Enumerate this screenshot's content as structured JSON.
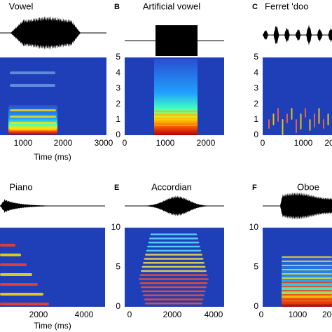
{
  "panels": [
    {
      "title": "Vowel",
      "xticks": [
        "1000",
        "2000",
        "3000"
      ],
      "xlabel": "Time (ms)"
    },
    {
      "letter": "B",
      "title": "Artificial vowel",
      "xticks": [
        "0",
        "1000",
        "2000"
      ],
      "yticks": [
        "0",
        "1",
        "2",
        "3",
        "4",
        "5"
      ]
    },
    {
      "letter": "C",
      "title": "Ferret 'doo",
      "xticks": [
        "0",
        "1000",
        "20"
      ],
      "yticks": [
        "0",
        "1",
        "2",
        "3",
        "4",
        "5"
      ]
    },
    {
      "title": "Piano",
      "xticks": [
        "2000",
        "4000"
      ],
      "xlabel": "Time (ms)"
    },
    {
      "letter": "E",
      "title": "Accordian",
      "xticks": [
        "0",
        "2000",
        "4000"
      ],
      "yticks": [
        "0",
        "5",
        "10"
      ]
    },
    {
      "letter": "F",
      "title": "Oboe",
      "xticks": [
        "0",
        "1000",
        "200"
      ],
      "yticks": [
        "0",
        "5",
        "10"
      ]
    }
  ]
}
